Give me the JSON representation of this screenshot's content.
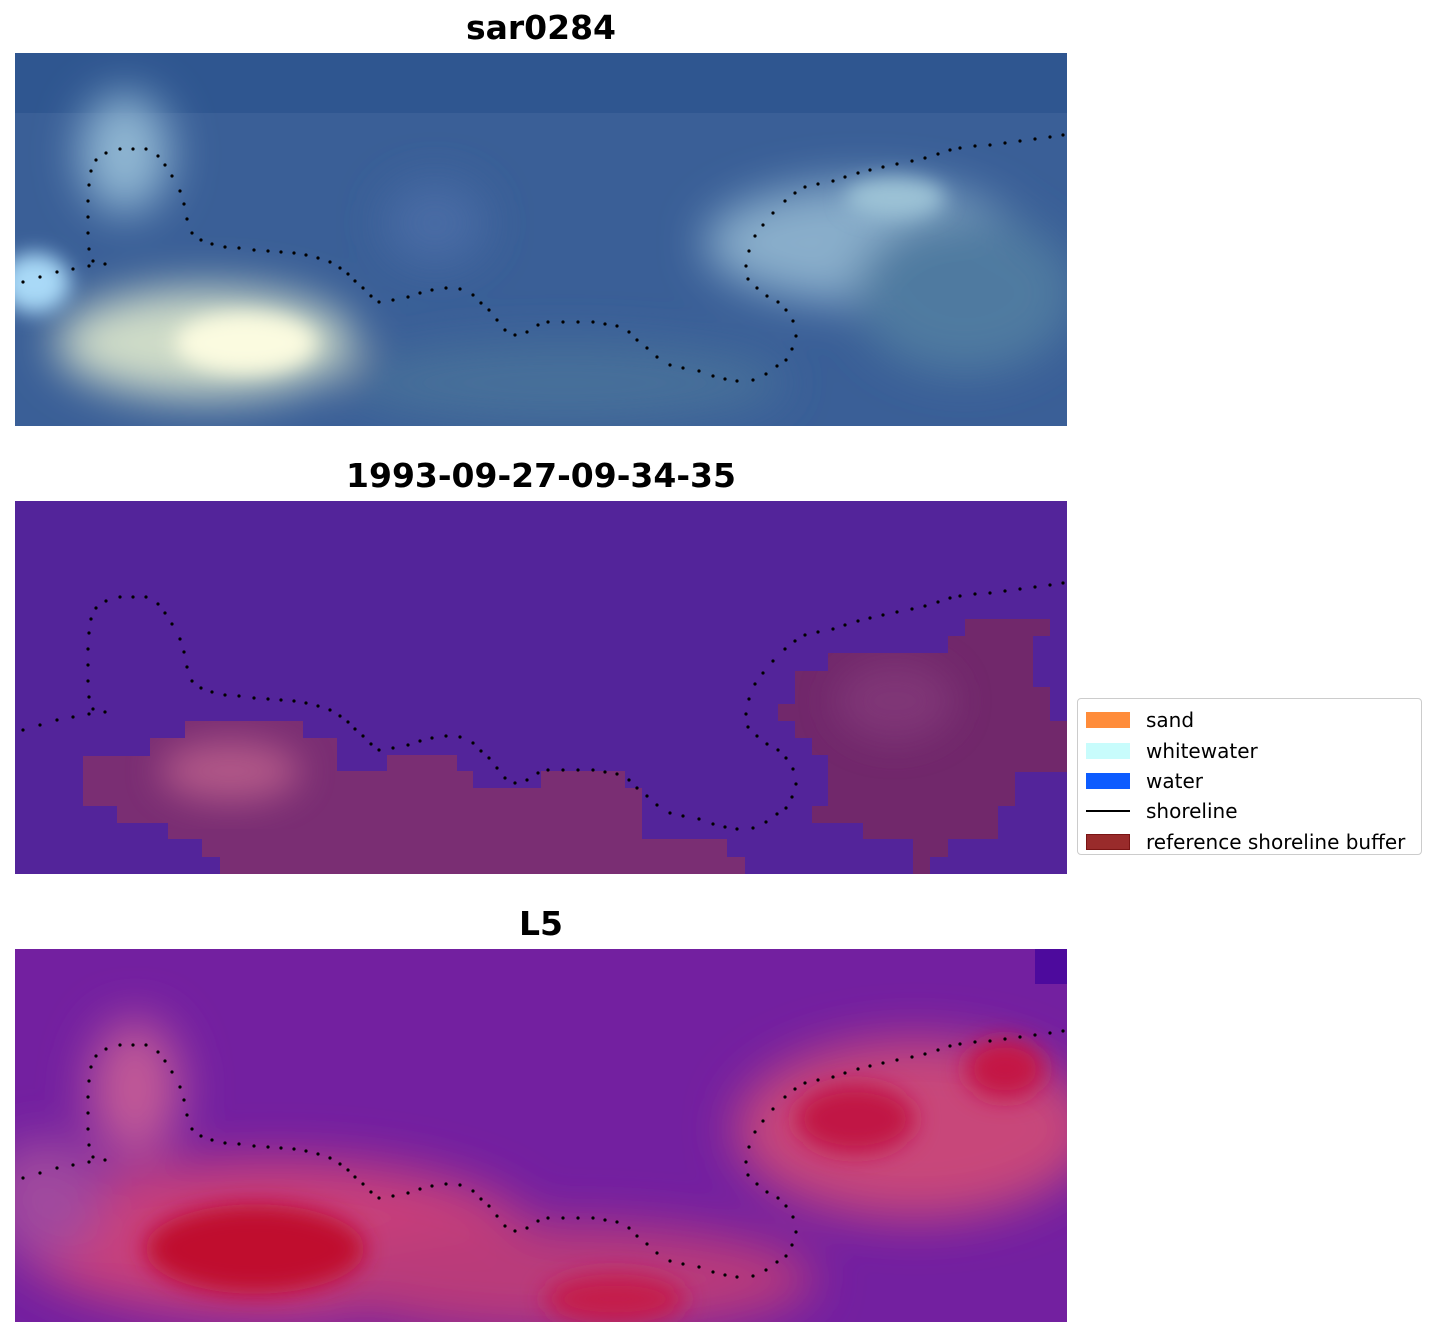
{
  "panels": [
    {
      "title": "sar0284"
    },
    {
      "title": "1993-09-27-09-34-35"
    },
    {
      "title": "L5"
    }
  ],
  "legend": {
    "items": [
      {
        "label": "sand",
        "color": "#ff8c3a",
        "kind": "patch"
      },
      {
        "label": "whitewater",
        "color": "#c8fcfc",
        "kind": "patch"
      },
      {
        "label": "water",
        "color": "#0d5cff",
        "kind": "patch"
      },
      {
        "label": "shoreline",
        "color": "#000000",
        "kind": "line"
      },
      {
        "label": "reference shoreline buffer",
        "color": "#992b2b",
        "kind": "patch"
      }
    ]
  },
  "colors": {
    "rgb_water": "#36609a",
    "class_background": "#53249a",
    "class_buffer": "#7a2e73",
    "index_low": "#6b1f9f",
    "index_high": "#c2123f"
  }
}
